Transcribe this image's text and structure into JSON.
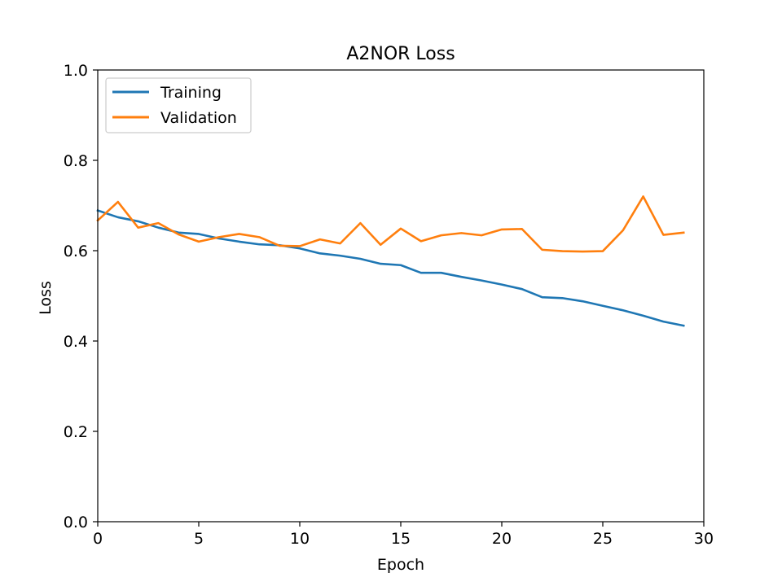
{
  "chart_data": {
    "type": "line",
    "title": "A2NOR Loss",
    "xlabel": "Epoch",
    "ylabel": "Loss",
    "xlim": [
      0,
      30
    ],
    "ylim": [
      0,
      1.0
    ],
    "xticks": [
      0,
      5,
      10,
      15,
      20,
      25,
      30
    ],
    "xtick_labels": [
      "0",
      "5",
      "10",
      "15",
      "20",
      "25",
      "30"
    ],
    "yticks": [
      0,
      0.2,
      0.4,
      0.6,
      0.8,
      1.0
    ],
    "ytick_labels": [
      "0.0",
      "0.2",
      "0.4",
      "0.6",
      "0.8",
      "1.0"
    ],
    "grid": false,
    "legend_position": "top-left",
    "x": [
      0,
      1,
      2,
      3,
      4,
      5,
      6,
      7,
      8,
      9,
      10,
      11,
      12,
      13,
      14,
      15,
      16,
      17,
      18,
      19,
      20,
      21,
      22,
      23,
      24,
      25,
      26,
      27,
      28,
      29
    ],
    "series": [
      {
        "name": "Training",
        "color": "#1f77b4",
        "values": [
          0.689,
          0.674,
          0.665,
          0.651,
          0.64,
          0.637,
          0.627,
          0.62,
          0.614,
          0.612,
          0.605,
          0.594,
          0.589,
          0.582,
          0.571,
          0.568,
          0.551,
          0.551,
          0.542,
          0.534,
          0.525,
          0.515,
          0.497,
          0.495,
          0.488,
          0.478,
          0.468,
          0.456,
          0.443,
          0.434
        ]
      },
      {
        "name": "Validation",
        "color": "#ff7f0e",
        "values": [
          0.667,
          0.708,
          0.651,
          0.661,
          0.636,
          0.62,
          0.63,
          0.637,
          0.63,
          0.611,
          0.61,
          0.625,
          0.616,
          0.661,
          0.613,
          0.649,
          0.621,
          0.634,
          0.639,
          0.634,
          0.647,
          0.648,
          0.602,
          0.599,
          0.598,
          0.599,
          0.645,
          0.72,
          0.635,
          0.64
        ]
      }
    ]
  }
}
